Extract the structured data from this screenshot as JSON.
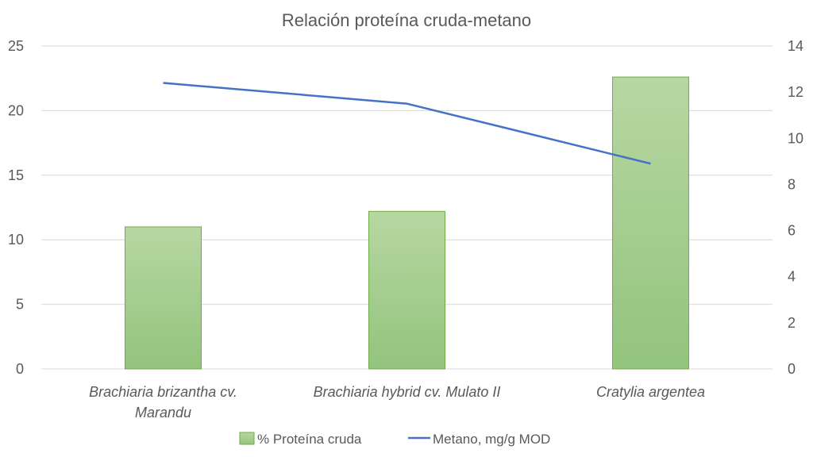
{
  "chart_data": {
    "type": "bar",
    "title": "Relación proteína cruda-metano",
    "categories": [
      [
        "Brachiaria brizantha cv.",
        "Marandu"
      ],
      [
        "Brachiaria hybrid cv. Mulato II"
      ],
      [
        "Cratylia argentea"
      ]
    ],
    "series": [
      {
        "name": "% Proteína cruda",
        "type": "bar",
        "axis": "left",
        "values": [
          11.0,
          12.2,
          22.6
        ],
        "color": "#a9d18e"
      },
      {
        "name": "Metano, mg/g MOD",
        "type": "line",
        "axis": "right",
        "values": [
          12.4,
          11.5,
          8.9
        ],
        "color": "#4472c4"
      }
    ],
    "y_left": {
      "min": 0,
      "max": 25,
      "ticks": [
        "0",
        "5",
        "10",
        "15",
        "20",
        "25"
      ]
    },
    "y_right": {
      "min": 0,
      "max": 14,
      "ticks": [
        "0",
        "2",
        "4",
        "6",
        "8",
        "10",
        "12",
        "14"
      ]
    },
    "grid": true,
    "legend_position": "bottom"
  }
}
